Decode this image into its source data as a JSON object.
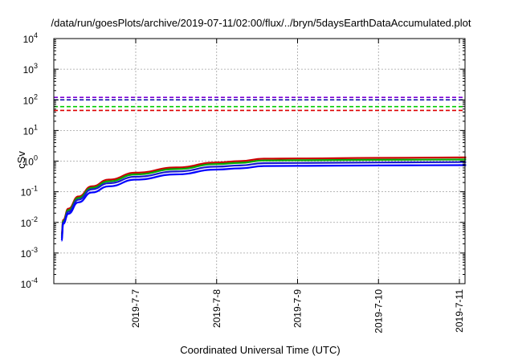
{
  "chart_data": {
    "type": "line",
    "title": "/data/run/goesPlots/archive/2019-07-11/02:00/flux/../bryn/5daysEarthDataAccumulated.plot",
    "xlabel": "Coordinated Universal Time (UTC)",
    "ylabel": "cSv",
    "y_scale": "log",
    "ylim_exponent": [
      -4,
      4
    ],
    "y_ticks": [
      {
        "base": "10",
        "exp": "-4"
      },
      {
        "base": "10",
        "exp": "-3"
      },
      {
        "base": "10",
        "exp": "-2"
      },
      {
        "base": "10",
        "exp": "-1"
      },
      {
        "base": "10",
        "exp": "0"
      },
      {
        "base": "10",
        "exp": "1"
      },
      {
        "base": "10",
        "exp": "2"
      },
      {
        "base": "10",
        "exp": "3"
      },
      {
        "base": "10",
        "exp": "4"
      }
    ],
    "x_range_days": [
      2019.6,
      2024.1
    ],
    "x_ticks": [
      "2019-7-7",
      "2019-7-8",
      "2019-7-9",
      "2019-7-10",
      "2019-7-11"
    ],
    "grid": true,
    "series": [
      {
        "color": "#cc0000",
        "x": [
          "2019-7-6 02:00",
          "2019-7-6 02:30",
          "2019-7-6 04:00",
          "2019-7-6 07:00",
          "2019-7-6 11:00",
          "2019-7-6 16:00",
          "2019-7-7 00:00",
          "2019-7-7 12:00",
          "2019-7-8 00:00",
          "2019-7-8 07:00",
          "2019-7-8 14:00",
          "2019-7-9 00:00",
          "2019-7-10 00:00",
          "2019-7-11 02:00"
        ],
        "y": [
          0.004,
          0.012,
          0.028,
          0.07,
          0.15,
          0.25,
          0.42,
          0.62,
          0.9,
          1.0,
          1.2,
          1.22,
          1.27,
          1.32
        ]
      },
      {
        "color": "#00aa00",
        "x": [
          "2019-7-6 02:00",
          "2019-7-6 02:30",
          "2019-7-6 04:00",
          "2019-7-6 07:00",
          "2019-7-6 11:00",
          "2019-7-6 16:00",
          "2019-7-7 00:00",
          "2019-7-7 12:00",
          "2019-7-8 00:00",
          "2019-7-8 07:00",
          "2019-7-8 14:00",
          "2019-7-9 00:00",
          "2019-7-10 00:00",
          "2019-7-11 02:00"
        ],
        "y": [
          0.0035,
          0.011,
          0.025,
          0.063,
          0.135,
          0.22,
          0.37,
          0.55,
          0.8,
          0.88,
          1.05,
          1.07,
          1.1,
          1.13
        ]
      },
      {
        "color": "#1a1acc",
        "x": [
          "2019-7-6 02:00",
          "2019-7-6 02:30",
          "2019-7-6 04:00",
          "2019-7-6 07:00",
          "2019-7-6 11:00",
          "2019-7-6 16:00",
          "2019-7-7 00:00",
          "2019-7-7 12:00",
          "2019-7-8 00:00",
          "2019-7-8 07:00",
          "2019-7-8 14:00",
          "2019-7-9 00:00",
          "2019-7-10 00:00",
          "2019-7-11 02:00"
        ],
        "y": [
          0.003,
          0.01,
          0.022,
          0.055,
          0.12,
          0.19,
          0.31,
          0.46,
          0.66,
          0.72,
          0.86,
          0.87,
          0.9,
          0.93
        ]
      },
      {
        "color": "#0000ff",
        "x": [
          "2019-7-6 02:00",
          "2019-7-6 02:30",
          "2019-7-6 04:00",
          "2019-7-6 07:00",
          "2019-7-6 11:00",
          "2019-7-6 16:00",
          "2019-7-7 00:00",
          "2019-7-7 12:00",
          "2019-7-8 00:00",
          "2019-7-8 07:00",
          "2019-7-8 14:00",
          "2019-7-9 00:00",
          "2019-7-10 00:00",
          "2019-7-11 02:00"
        ],
        "y": [
          0.0025,
          0.009,
          0.019,
          0.045,
          0.095,
          0.15,
          0.25,
          0.37,
          0.53,
          0.58,
          0.69,
          0.7,
          0.72,
          0.74
        ]
      }
    ],
    "thresholds": [
      {
        "color": "#7b00d4",
        "y": 120
      },
      {
        "color": "#0000aa",
        "y": 100
      },
      {
        "color": "#00cc00",
        "y": 60
      },
      {
        "color": "#dd0000",
        "y": 45
      }
    ]
  }
}
